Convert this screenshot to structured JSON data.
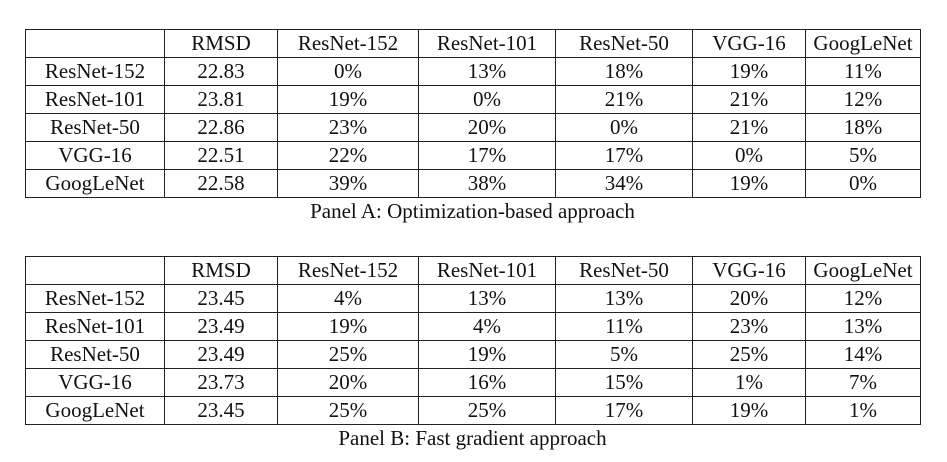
{
  "panels": [
    {
      "id": "panel-a",
      "caption": "Panel A: Optimization-based approach",
      "header": [
        "",
        "RMSD",
        "ResNet-152",
        "ResNet-101",
        "ResNet-50",
        "VGG-16",
        "GoogLeNet"
      ],
      "rows": [
        [
          "ResNet-152",
          "22.83",
          "0%",
          "13%",
          "18%",
          "19%",
          "11%"
        ],
        [
          "ResNet-101",
          "23.81",
          "19%",
          "0%",
          "21%",
          "21%",
          "12%"
        ],
        [
          "ResNet-50",
          "22.86",
          "23%",
          "20%",
          "0%",
          "21%",
          "18%"
        ],
        [
          "VGG-16",
          "22.51",
          "22%",
          "17%",
          "17%",
          "0%",
          "5%"
        ],
        [
          "GoogLeNet",
          "22.58",
          "39%",
          "38%",
          "34%",
          "19%",
          "0%"
        ]
      ]
    },
    {
      "id": "panel-b",
      "caption": "Panel B: Fast gradient approach",
      "header": [
        "",
        "RMSD",
        "ResNet-152",
        "ResNet-101",
        "ResNet-50",
        "VGG-16",
        "GoogLeNet"
      ],
      "rows": [
        [
          "ResNet-152",
          "23.45",
          "4%",
          "13%",
          "13%",
          "20%",
          "12%"
        ],
        [
          "ResNet-101",
          "23.49",
          "19%",
          "4%",
          "11%",
          "23%",
          "13%"
        ],
        [
          "ResNet-50",
          "23.49",
          "25%",
          "19%",
          "5%",
          "25%",
          "14%"
        ],
        [
          "VGG-16",
          "23.73",
          "20%",
          "16%",
          "15%",
          "1%",
          "7%"
        ],
        [
          "GoogLeNet",
          "23.45",
          "25%",
          "25%",
          "17%",
          "19%",
          "1%"
        ]
      ]
    }
  ]
}
